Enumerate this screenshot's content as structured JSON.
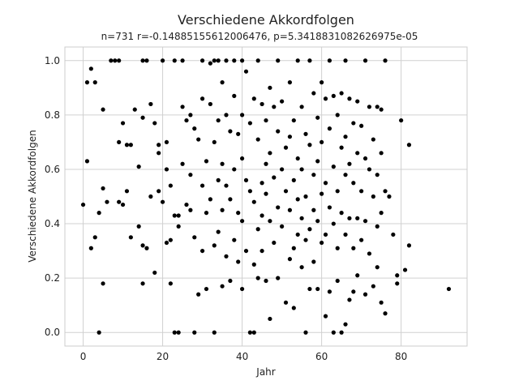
{
  "chart_data": {
    "type": "scatter",
    "title": "Verschiedene Akkordfolgen",
    "subtitle": "n=731 r=-0.14885155612006476, p=5.3418831082626975e-05",
    "xlabel": "Jahr",
    "ylabel": "Verschiedene Akkordfolgen",
    "xlim": [
      -4.6,
      96.6
    ],
    "ylim": [
      -0.05,
      1.05
    ],
    "xticks": [
      0,
      20,
      40,
      60,
      80
    ],
    "xtick_labels": [
      "0",
      "20",
      "40",
      "60",
      "80"
    ],
    "yticks": [
      0.0,
      0.2,
      0.4,
      0.6,
      0.8,
      1.0
    ],
    "ytick_labels": [
      "0.0",
      "0.2",
      "0.4",
      "0.6",
      "0.8",
      "1.0"
    ],
    "grid": true,
    "marker_color": "#000000",
    "points": [
      [
        0,
        0.47
      ],
      [
        1,
        0.92
      ],
      [
        1,
        0.63
      ],
      [
        2,
        0.97
      ],
      [
        2,
        0.31
      ],
      [
        3,
        0.92
      ],
      [
        3,
        0.35
      ],
      [
        4,
        0.0
      ],
      [
        4,
        0.44
      ],
      [
        5,
        0.82
      ],
      [
        5,
        0.53
      ],
      [
        5,
        0.18
      ],
      [
        6,
        0.48
      ],
      [
        7,
        1.0
      ],
      [
        8,
        1.0
      ],
      [
        9,
        1.0
      ],
      [
        9,
        0.7
      ],
      [
        9,
        0.48
      ],
      [
        10,
        0.77
      ],
      [
        10,
        0.47
      ],
      [
        11,
        0.69
      ],
      [
        11,
        0.52
      ],
      [
        12,
        0.69
      ],
      [
        12,
        0.35
      ],
      [
        13,
        0.82
      ],
      [
        14,
        0.61
      ],
      [
        14,
        0.39
      ],
      [
        15,
        1.0
      ],
      [
        15,
        0.79
      ],
      [
        15,
        0.32
      ],
      [
        15,
        0.18
      ],
      [
        16,
        1.0
      ],
      [
        16,
        0.31
      ],
      [
        17,
        0.84
      ],
      [
        17,
        0.5
      ],
      [
        18,
        0.77
      ],
      [
        18,
        0.22
      ],
      [
        19,
        0.69
      ],
      [
        19,
        0.66
      ],
      [
        19,
        0.52
      ],
      [
        20,
        1.0
      ],
      [
        20,
        0.48
      ],
      [
        21,
        0.7
      ],
      [
        21,
        0.6
      ],
      [
        21,
        0.33
      ],
      [
        22,
        0.54
      ],
      [
        22,
        0.34
      ],
      [
        22,
        0.18
      ],
      [
        23,
        1.0
      ],
      [
        23,
        0.43
      ],
      [
        23,
        0.0
      ],
      [
        24,
        0.0
      ],
      [
        24,
        0.43
      ],
      [
        24,
        0.39
      ],
      [
        25,
        1.0
      ],
      [
        25,
        0.83
      ],
      [
        25,
        0.62
      ],
      [
        26,
        0.78
      ],
      [
        26,
        0.47
      ],
      [
        27,
        0.8
      ],
      [
        27,
        0.58
      ],
      [
        27,
        0.45
      ],
      [
        28,
        0.0
      ],
      [
        28,
        0.75
      ],
      [
        28,
        0.35
      ],
      [
        29,
        0.71
      ],
      [
        29,
        0.14
      ],
      [
        30,
        1.0
      ],
      [
        30,
        0.86
      ],
      [
        30,
        0.54
      ],
      [
        30,
        0.3
      ],
      [
        31,
        0.63
      ],
      [
        31,
        0.44
      ],
      [
        31,
        0.16
      ],
      [
        32,
        0.99
      ],
      [
        32,
        0.84
      ],
      [
        32,
        0.49
      ],
      [
        33,
        1.0
      ],
      [
        33,
        0.7
      ],
      [
        33,
        0.32
      ],
      [
        33,
        0.0
      ],
      [
        34,
        1.0
      ],
      [
        34,
        0.78
      ],
      [
        34,
        0.56
      ],
      [
        34,
        0.37
      ],
      [
        35,
        0.92
      ],
      [
        35,
        0.62
      ],
      [
        35,
        0.45
      ],
      [
        35,
        0.17
      ],
      [
        36,
        1.0
      ],
      [
        36,
        0.8
      ],
      [
        36,
        0.54
      ],
      [
        36,
        0.28
      ],
      [
        37,
        0.74
      ],
      [
        37,
        0.49
      ],
      [
        37,
        0.19
      ],
      [
        38,
        1.0
      ],
      [
        38,
        0.87
      ],
      [
        38,
        0.6
      ],
      [
        38,
        0.34
      ],
      [
        39,
        0.73
      ],
      [
        39,
        0.44
      ],
      [
        39,
        0.26
      ],
      [
        40,
        1.0
      ],
      [
        40,
        0.8
      ],
      [
        40,
        0.64
      ],
      [
        40,
        0.41
      ],
      [
        40,
        0.16
      ],
      [
        41,
        0.96
      ],
      [
        41,
        0.56
      ],
      [
        41,
        0.3
      ],
      [
        42,
        0.77
      ],
      [
        42,
        0.52
      ],
      [
        42,
        0.0
      ],
      [
        43,
        0.86
      ],
      [
        43,
        0.48
      ],
      [
        43,
        0.25
      ],
      [
        43,
        0.0
      ],
      [
        44,
        1.0
      ],
      [
        44,
        0.71
      ],
      [
        44,
        0.38
      ],
      [
        44,
        0.2
      ],
      [
        45,
        0.84
      ],
      [
        45,
        0.55
      ],
      [
        45,
        0.43
      ],
      [
        45,
        0.3
      ],
      [
        46,
        0.78
      ],
      [
        46,
        0.62
      ],
      [
        46,
        0.51
      ],
      [
        46,
        0.19
      ],
      [
        47,
        0.9
      ],
      [
        47,
        0.66
      ],
      [
        47,
        0.41
      ],
      [
        47,
        0.05
      ],
      [
        48,
        0.83
      ],
      [
        48,
        0.57
      ],
      [
        48,
        0.33
      ],
      [
        49,
        1.0
      ],
      [
        49,
        0.74
      ],
      [
        49,
        0.46
      ],
      [
        49,
        0.2
      ],
      [
        50,
        0.85
      ],
      [
        50,
        0.6
      ],
      [
        50,
        0.39
      ],
      [
        51,
        0.68
      ],
      [
        51,
        0.52
      ],
      [
        51,
        0.11
      ],
      [
        52,
        0.92
      ],
      [
        52,
        0.72
      ],
      [
        52,
        0.45
      ],
      [
        52,
        0.27
      ],
      [
        53,
        0.78
      ],
      [
        53,
        0.56
      ],
      [
        53,
        0.31
      ],
      [
        53,
        0.09
      ],
      [
        54,
        1.0
      ],
      [
        54,
        0.64
      ],
      [
        54,
        0.49
      ],
      [
        54,
        0.36
      ],
      [
        55,
        0.83
      ],
      [
        55,
        0.6
      ],
      [
        55,
        0.42
      ],
      [
        55,
        0.24
      ],
      [
        56,
        0.73
      ],
      [
        56,
        0.5
      ],
      [
        56,
        0.34
      ],
      [
        56,
        0.0
      ],
      [
        57,
        1.0
      ],
      [
        57,
        0.69
      ],
      [
        57,
        0.38
      ],
      [
        57,
        0.16
      ],
      [
        58,
        0.88
      ],
      [
        58,
        0.58
      ],
      [
        58,
        0.45
      ],
      [
        58,
        0.26
      ],
      [
        59,
        0.79
      ],
      [
        59,
        0.63
      ],
      [
        59,
        0.41
      ],
      [
        59,
        0.16
      ],
      [
        60,
        0.92
      ],
      [
        60,
        0.7
      ],
      [
        60,
        0.51
      ],
      [
        60,
        0.33
      ],
      [
        61,
        0.86
      ],
      [
        61,
        0.55
      ],
      [
        61,
        0.36
      ],
      [
        61,
        0.06
      ],
      [
        62,
        1.0
      ],
      [
        62,
        0.75
      ],
      [
        62,
        0.46
      ],
      [
        62,
        0.15
      ],
      [
        63,
        0.87
      ],
      [
        63,
        0.61
      ],
      [
        63,
        0.4
      ],
      [
        63,
        0.0
      ],
      [
        64,
        0.8
      ],
      [
        64,
        0.52
      ],
      [
        64,
        0.31
      ],
      [
        64,
        0.19
      ],
      [
        65,
        0.88
      ],
      [
        65,
        0.68
      ],
      [
        65,
        0.44
      ],
      [
        65,
        0.0
      ],
      [
        66,
        1.0
      ],
      [
        66,
        0.72
      ],
      [
        66,
        0.58
      ],
      [
        66,
        0.36
      ],
      [
        66,
        0.03
      ],
      [
        67,
        0.86
      ],
      [
        67,
        0.62
      ],
      [
        67,
        0.42
      ],
      [
        67,
        0.12
      ],
      [
        68,
        0.77
      ],
      [
        68,
        0.55
      ],
      [
        68,
        0.31
      ],
      [
        68,
        0.15
      ],
      [
        69,
        0.85
      ],
      [
        69,
        0.66
      ],
      [
        69,
        0.42
      ],
      [
        69,
        0.21
      ],
      [
        70,
        0.76
      ],
      [
        70,
        0.52
      ],
      [
        70,
        0.34
      ],
      [
        71,
        1.0
      ],
      [
        71,
        0.64
      ],
      [
        71,
        0.41
      ],
      [
        71,
        0.14
      ],
      [
        72,
        0.83
      ],
      [
        72,
        0.6
      ],
      [
        72,
        0.29
      ],
      [
        73,
        0.71
      ],
      [
        73,
        0.5
      ],
      [
        73,
        0.17
      ],
      [
        74,
        0.83
      ],
      [
        74,
        0.58
      ],
      [
        74,
        0.39
      ],
      [
        74,
        0.24
      ],
      [
        75,
        0.82
      ],
      [
        75,
        0.66
      ],
      [
        75,
        0.44
      ],
      [
        75,
        0.11
      ],
      [
        76,
        1.0
      ],
      [
        76,
        0.52
      ],
      [
        76,
        0.07
      ],
      [
        77,
        0.5
      ],
      [
        78,
        0.36
      ],
      [
        79,
        0.21
      ],
      [
        79,
        0.18
      ],
      [
        80,
        0.78
      ],
      [
        81,
        0.23
      ],
      [
        82,
        0.69
      ],
      [
        82,
        0.32
      ],
      [
        92,
        0.16
      ]
    ]
  }
}
